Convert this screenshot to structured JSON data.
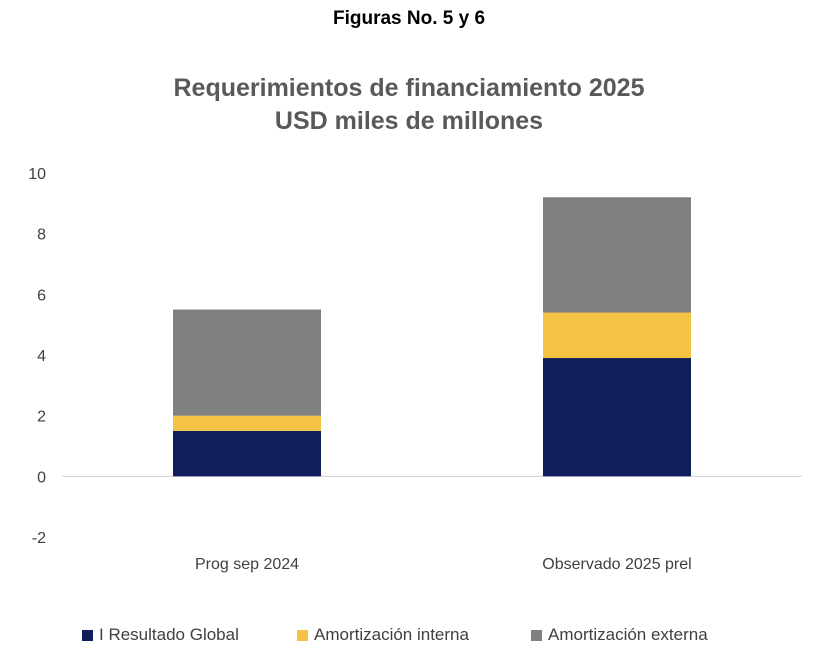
{
  "figure_heading": "Figuras No. 5 y 6",
  "chart_data": {
    "type": "bar",
    "stacked": true,
    "title": "Requerimientos de financiamiento 2025",
    "subtitle": "USD miles de millones",
    "categories": [
      "Prog sep 2024",
      "Observado 2025 prel"
    ],
    "series": [
      {
        "name": "I Resultado Global",
        "color": "#0e1f5b",
        "values": [
          1.5,
          3.9
        ]
      },
      {
        "name": "Amortización interna",
        "color": "#f5c343",
        "values": [
          0.5,
          1.5
        ]
      },
      {
        "name": "Amortización externa",
        "color": "#808080",
        "values": [
          3.5,
          3.8
        ]
      }
    ],
    "ylim": [
      -2,
      10
    ],
    "yticks": [
      "10",
      "8",
      "6",
      "4",
      "2",
      "0",
      "-2"
    ],
    "ytick_values": [
      10,
      8,
      6,
      4,
      2,
      0,
      -2
    ],
    "grid": false,
    "legend_position": "bottom"
  }
}
